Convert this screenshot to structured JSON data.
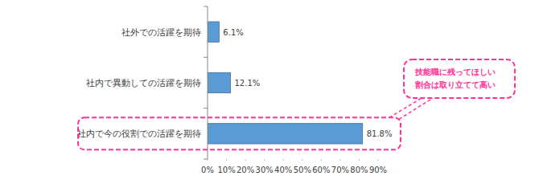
{
  "chart_data": {
    "type": "bar",
    "orientation": "horizontal",
    "categories": [
      "社外での活躍を期待",
      "社内で異動しての活躍を期待",
      "社内で今の役割での活躍を期待"
    ],
    "values": [
      6.1,
      12.1,
      81.8
    ],
    "value_labels": [
      "6.1%",
      "12.1%",
      "81.8%"
    ],
    "color": "#5b9bd5",
    "xlim": [
      0,
      90
    ],
    "xticks": [
      {
        "value": 0,
        "label": "0%"
      },
      {
        "value": 10,
        "label": "10%"
      },
      {
        "value": 20,
        "label": "20%"
      },
      {
        "value": 30,
        "label": "30%"
      },
      {
        "value": 40,
        "label": "40%"
      },
      {
        "value": 50,
        "label": "50%"
      },
      {
        "value": 60,
        "label": "60%"
      },
      {
        "value": 70,
        "label": "70%"
      },
      {
        "value": 80,
        "label": "80%"
      },
      {
        "value": 90,
        "label": "90%"
      }
    ],
    "grid": false,
    "data_labels": true,
    "annotation": [
      "技能職に残ってほしい",
      "割合は取り立てて高い"
    ]
  }
}
